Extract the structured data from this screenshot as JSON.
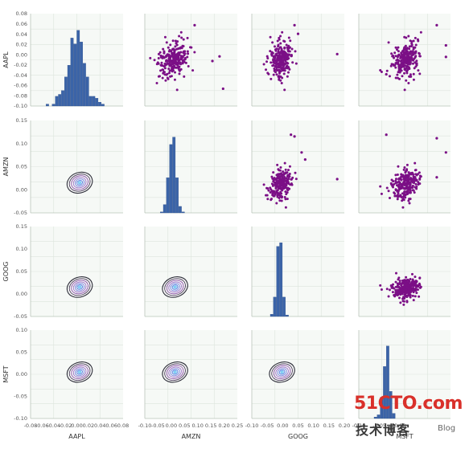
{
  "chart_data": {
    "type": "scatter",
    "layout": "pairgrid",
    "variables": [
      "AAPL",
      "AMZN",
      "GOOG",
      "MSFT"
    ],
    "diagonal": "histogram",
    "upper": "scatter",
    "lower": "kde",
    "grid": true,
    "colors": {
      "hist": "#3b64a8",
      "scatter": "#7b0f86",
      "kde_outer": "#2e2e3a",
      "kde_mid": "#8a4fa8",
      "kde_inner": "#5a82e6",
      "panel_bg": "#f6f9f6",
      "grid": "#dde5dd"
    },
    "axes": {
      "AAPL": {
        "lim": [
          -0.08,
          0.08
        ],
        "y_ticks": [
          "0.08",
          "0.06",
          "0.04",
          "0.02",
          "0.00",
          "-0.02",
          "-0.04",
          "-0.06",
          "-0.08",
          "-0.10"
        ],
        "x_ticks": [
          "-0.08",
          "-0.06",
          "-0.04",
          "-0.02",
          "0.00",
          "0.02",
          "0.04",
          "0.06",
          "0.08"
        ]
      },
      "AMZN": {
        "lim": [
          -0.08,
          0.18
        ],
        "y_ticks": [
          "0.15",
          "0.10",
          "0.05",
          "0.00",
          "-0.05"
        ],
        "x_ticks": [
          "-0.10",
          "-0.05",
          "0.00",
          "0.05",
          "0.10",
          "0.15",
          "0.20",
          "0.25"
        ]
      },
      "GOOG": {
        "lim": [
          -0.08,
          0.18
        ],
        "y_ticks": [
          "0.15",
          "0.10",
          "0.05",
          "0.00",
          "-0.05"
        ],
        "x_ticks": [
          "-0.10",
          "-0.05",
          "0.00",
          "0.05",
          "0.10",
          "0.15",
          "0.20"
        ]
      },
      "MSFT": {
        "lim": [
          -0.1,
          0.1
        ],
        "y_ticks": [
          "0.10",
          "0.05",
          "0.00",
          "-0.05",
          "-0.10"
        ],
        "x_ticks": [
          "-0.10",
          "-0.05",
          "0.00"
        ]
      }
    },
    "outliers": [
      {
        "x": "AMZN",
        "y": "AAPL",
        "x_values": [
          0.06,
          0.14,
          0.11,
          0.13
        ],
        "y_values": [
          0.06,
          -0.05,
          -0.002,
          0.006
        ]
      },
      {
        "x": "GOOG",
        "y": "AAPL",
        "x_values": [
          0.04,
          0.16,
          0.05
        ],
        "y_values": [
          0.06,
          0.01,
          0.045
        ]
      },
      {
        "x": "MSFT",
        "y": "AAPL",
        "x_values": [
          0.07,
          0.09,
          0.09,
          -0.04
        ],
        "y_values": [
          0.06,
          0.025,
          0.005,
          -0.025
        ]
      },
      {
        "x": "AAPL",
        "y": "AMZN",
        "x_values": [
          0.004,
          0.006,
          0.01,
          0.04,
          0.06,
          0.06
        ],
        "y_values": [
          0.14,
          0.135,
          0.09,
          0.07,
          0.09,
          0.015
        ]
      },
      {
        "x": "GOOG",
        "y": "AMZN",
        "x_values": [
          0.03,
          0.04,
          0.06,
          0.07,
          0.16
        ],
        "y_values": [
          0.14,
          0.135,
          0.09,
          0.07,
          0.015
        ]
      },
      {
        "x": "MSFT",
        "y": "AMZN",
        "x_values": [
          -0.04,
          0.09,
          0.07,
          0.07
        ],
        "y_values": [
          0.14,
          0.09,
          0.13,
          0.02
        ]
      },
      {
        "x": "AAPL",
        "y": "GOOG",
        "x_values": [
          0.07,
          0.01,
          0.05,
          0.06
        ],
        "y_values": [
          0.16,
          0.09,
          0.06,
          -0.06
        ]
      },
      {
        "x": "AMZN",
        "y": "GOOG",
        "x_values": [
          0.14,
          0.13,
          0.1,
          0.09,
          0.06
        ],
        "y_values": [
          0.16,
          0.08,
          0.05,
          0.06,
          0.07
        ]
      },
      {
        "x": "AAPL",
        "y": "MSFT",
        "x_values": [
          -0.04,
          0.06,
          0.06
        ],
        "y_values": [
          -0.04,
          0.05,
          0.07
        ]
      }
    ],
    "axis_labels": {
      "x": [
        "AAPL",
        "AMZN",
        "GOOG",
        "MSFT"
      ],
      "y": [
        "AAPL",
        "AMZN",
        "GOOG",
        "MSFT"
      ]
    }
  },
  "watermark": {
    "main": "51CTO.com",
    "sub": "技术博客",
    "tag": "Blog"
  }
}
